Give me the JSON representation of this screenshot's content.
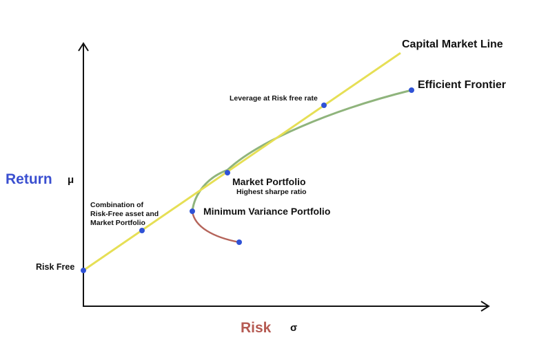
{
  "diagram": {
    "labels": {
      "capital_market_line": "Capital Market Line",
      "efficient_frontier": "Efficient Frontier",
      "leverage": "Leverage at Risk free rate",
      "market_portfolio": "Market Portfolio",
      "highest_sharpe": "Highest sharpe ratio",
      "min_variance": "Minimum Variance Portfolio",
      "combination_line1": "Combination of",
      "combination_line2": "Risk-Free asset and",
      "combination_line3": "Market Portfolio",
      "risk_free": "Risk Free"
    },
    "axes": {
      "y_label": "Return",
      "y_symbol": "μ",
      "x_label": "Risk",
      "x_symbol": "σ"
    },
    "colors": {
      "cml": "#e6df55",
      "efficient_frontier": "#8fb47c",
      "inefficient_branch": "#b5645a",
      "points": "#2f52d6",
      "axes": "#111111",
      "return_label": "#3a4fd0",
      "risk_label": "#b55a52"
    }
  }
}
